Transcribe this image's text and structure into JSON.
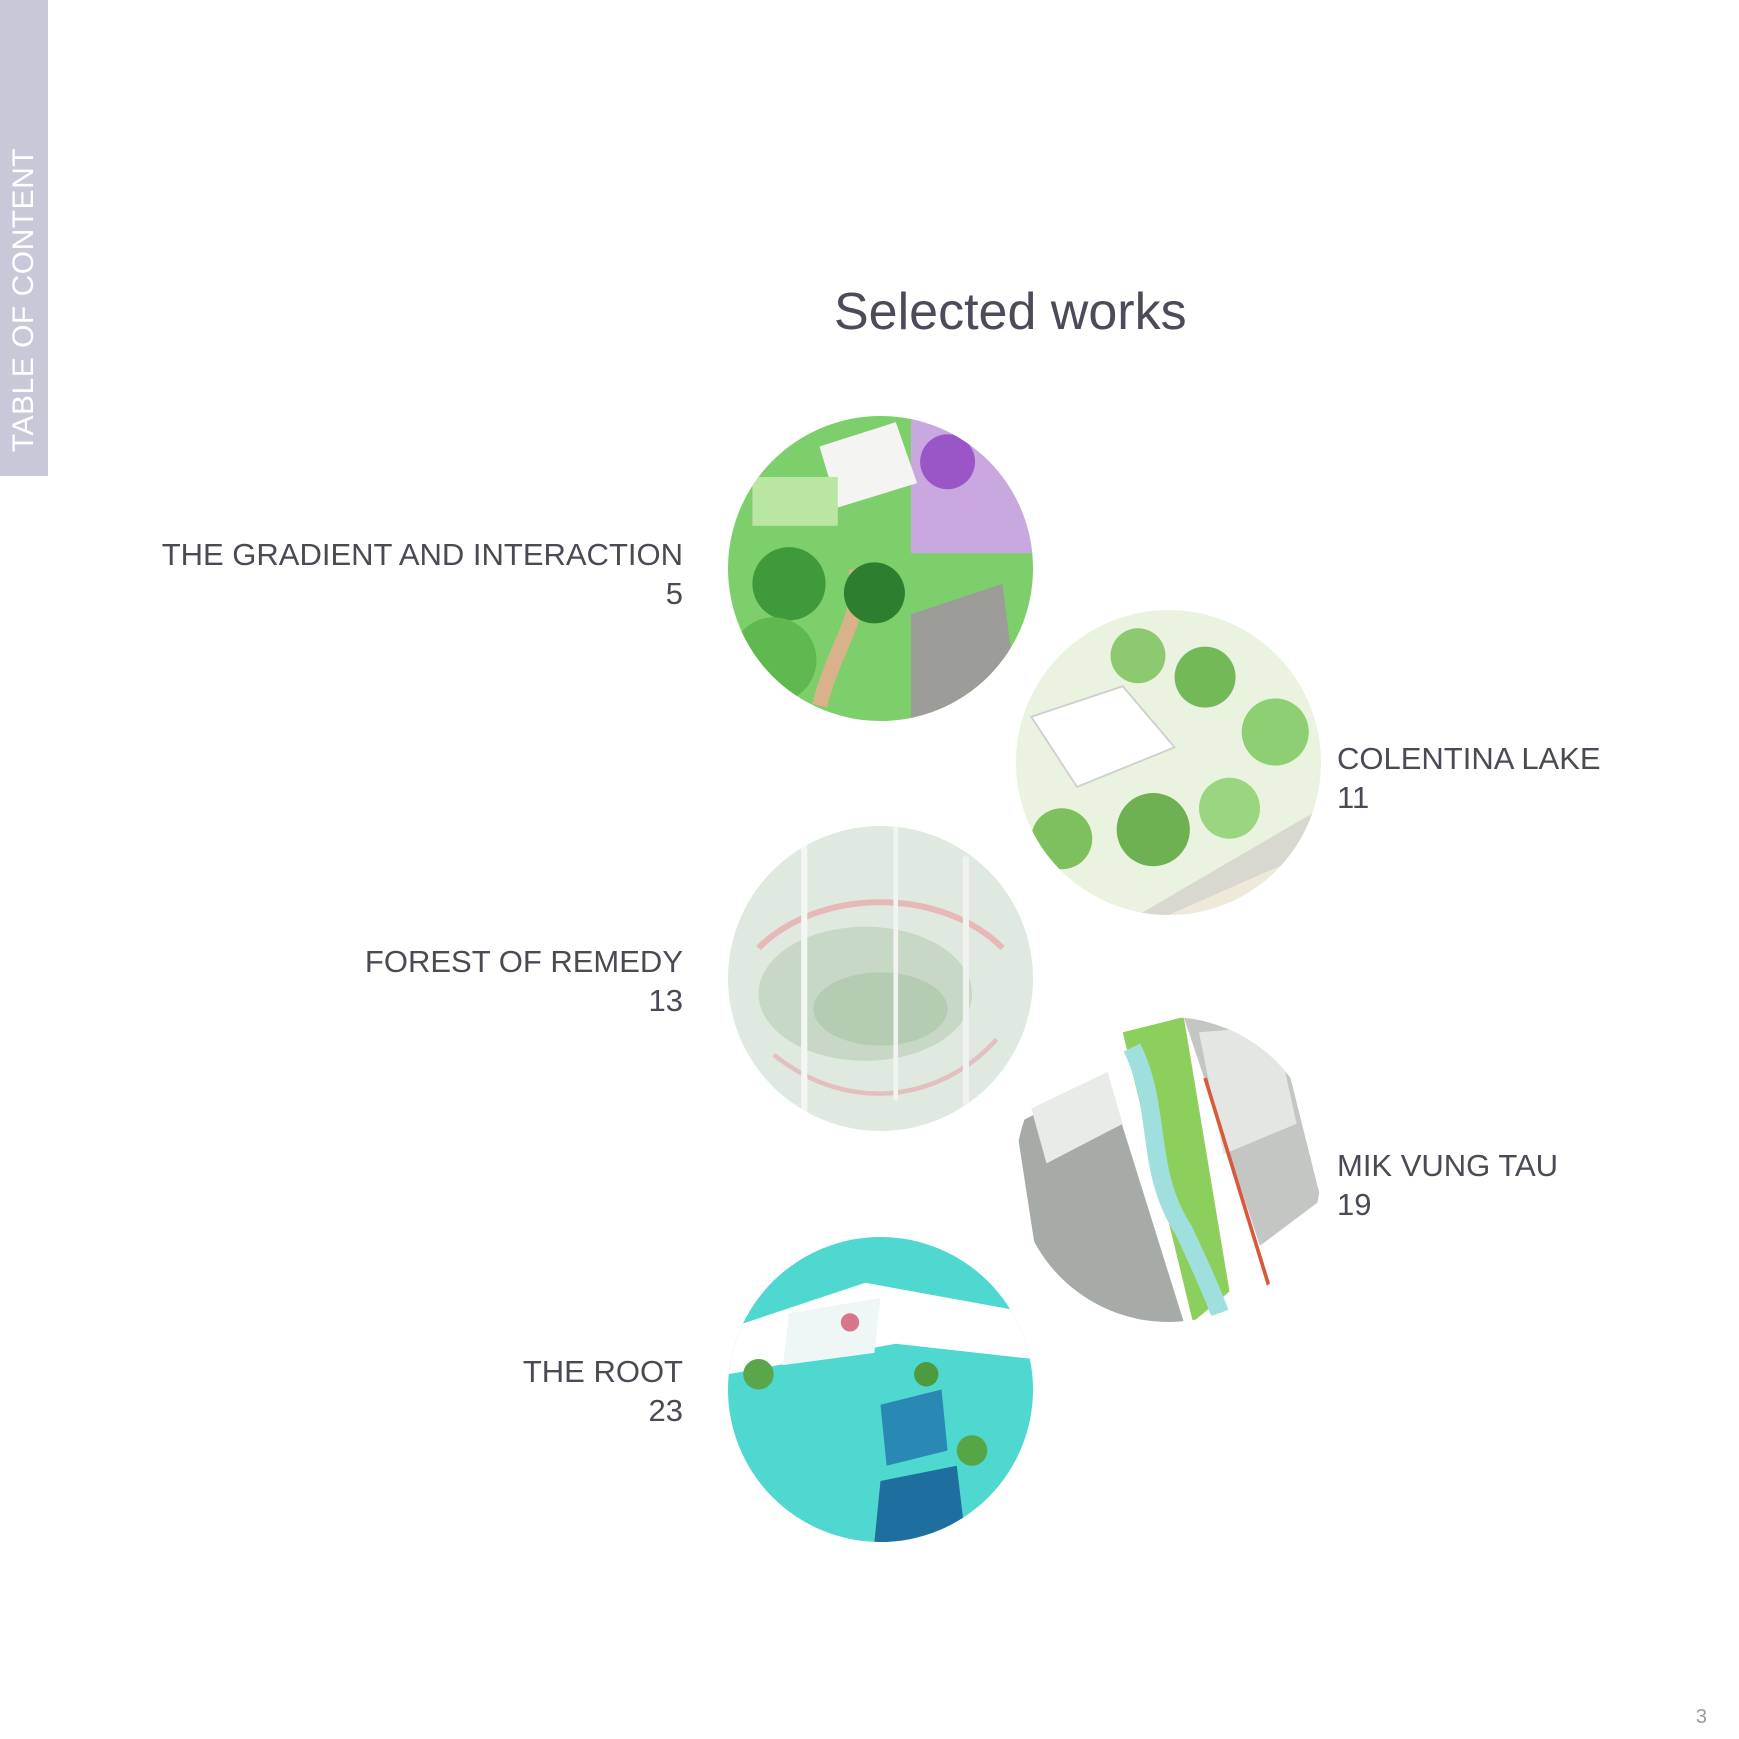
{
  "side_tab": {
    "label": "TABLE OF CONTENT"
  },
  "title": "Selected works",
  "works": [
    {
      "name": "THE GRADIENT AND INTERACTION",
      "page": "5",
      "palette": "green-garden"
    },
    {
      "name": "COLENTINA LAKE",
      "page": "11",
      "palette": "light-green-forest"
    },
    {
      "name": "FOREST OF REMEDY",
      "page": "13",
      "palette": "misty-forest"
    },
    {
      "name": "MIK VUNG TAU",
      "page": "19",
      "palette": "grey-blocks-canal"
    },
    {
      "name": "THE ROOT",
      "page": "23",
      "palette": "turquoise-water"
    }
  ],
  "page_number": "3",
  "colors": {
    "tab": "#c9c8d9",
    "title": "#4b4b5a",
    "label": "#4a4a55"
  }
}
